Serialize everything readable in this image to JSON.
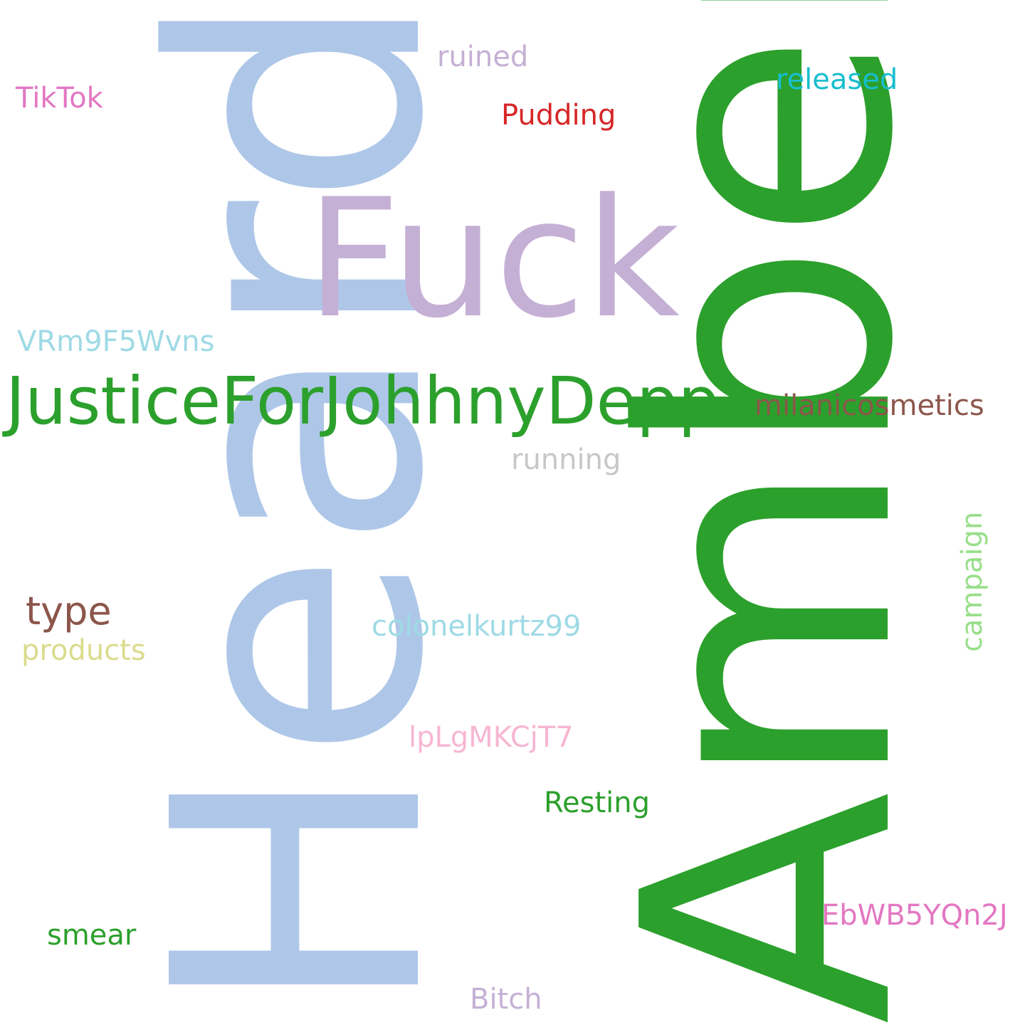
{
  "words": {
    "heard": {
      "text": "Heard",
      "color": "#aec7e8"
    },
    "amber": {
      "text": "Amber",
      "color": "#2ca02c"
    },
    "fuck": {
      "text": "Fuck",
      "color": "#c5b0d5"
    },
    "justice": {
      "text": "JusticeForJohhnyDepp",
      "color": "#2ca02c"
    },
    "milani": {
      "text": "milanicosmetics",
      "color": "#8c564b"
    },
    "running": {
      "text": "running",
      "color": "#c7c7c7"
    },
    "ruined": {
      "text": "ruined",
      "color": "#c5b0d5"
    },
    "released": {
      "text": "released",
      "color": "#17becf"
    },
    "tiktok": {
      "text": "TikTok",
      "color": "#e377c2"
    },
    "pudding": {
      "text": "Pudding",
      "color": "#d62728"
    },
    "vrm": {
      "text": "VRm9F5Wvns",
      "color": "#9edae5"
    },
    "type": {
      "text": "type",
      "color": "#8c564b"
    },
    "products": {
      "text": "products",
      "color": "#dbdb8d"
    },
    "colonel": {
      "text": "colonelkurtz99",
      "color": "#9edae5"
    },
    "campaign": {
      "text": "campaign",
      "color": "#98df8a"
    },
    "lpl": {
      "text": "lpLgMKCjT7",
      "color": "#f7b6d2"
    },
    "resting": {
      "text": "Resting",
      "color": "#2ca02c"
    },
    "ebw": {
      "text": "EbWB5YQn2J",
      "color": "#e377c2"
    },
    "smear": {
      "text": "smear",
      "color": "#2ca02c"
    },
    "bitch": {
      "text": "Bitch",
      "color": "#c5b0d5"
    }
  }
}
